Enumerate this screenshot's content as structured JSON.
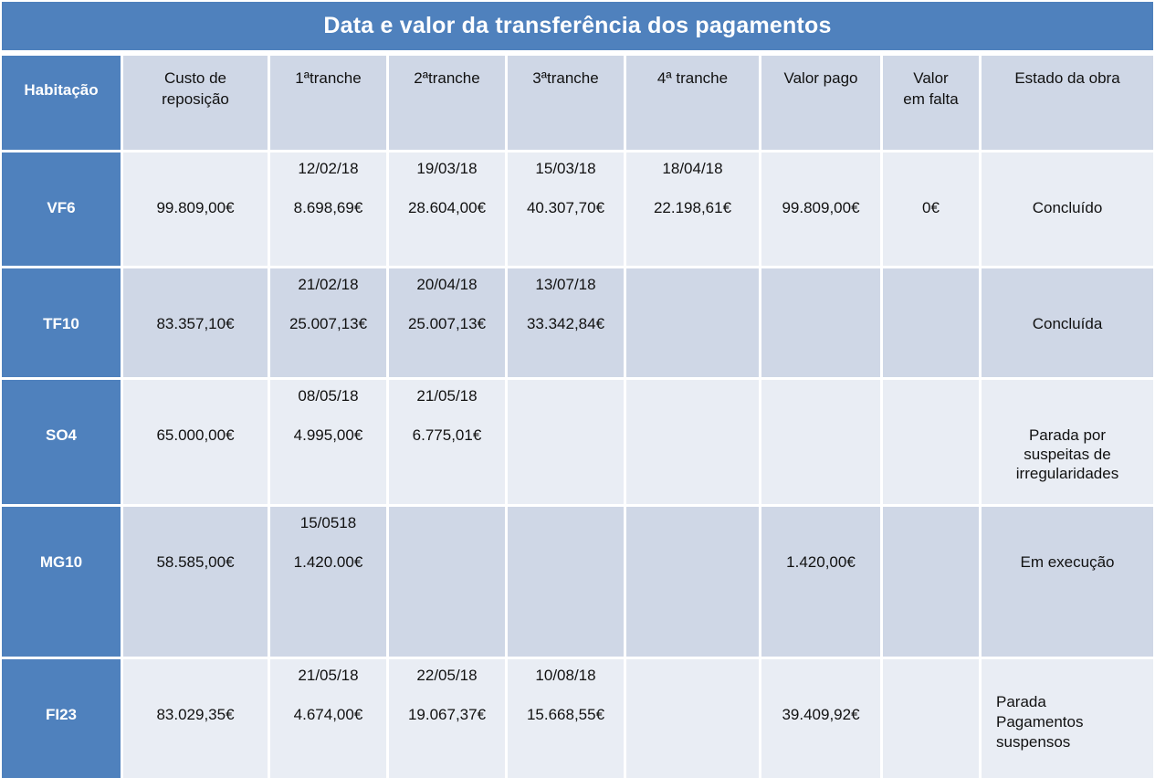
{
  "title": "Data e valor da transferência dos pagamentos",
  "colors": {
    "accent_blue": "#4f81bd",
    "band_dark": "#cfd7e6",
    "band_light": "#e9edf4",
    "title_text": "#ffffff",
    "body_text": "#111111"
  },
  "columns": [
    "Habitação",
    "Custo de\nreposição",
    "1ªtranche",
    "2ªtranche",
    "3ªtranche",
    "4ª tranche",
    "Valor pago",
    "Valor\nem falta",
    "Estado da obra"
  ],
  "rows": [
    {
      "id": "VF6",
      "custo": "99.809,00€",
      "t1": {
        "date": "12/02/18",
        "value": "8.698,69€"
      },
      "t2": {
        "date": "19/03/18",
        "value": "28.604,00€"
      },
      "t3": {
        "date": "15/03/18",
        "value": "40.307,70€"
      },
      "t4": {
        "date": "18/04/18",
        "value": "22.198,61€"
      },
      "valor_pago": "99.809,00€",
      "valor_em_falta": "0€",
      "estado": "Concluído"
    },
    {
      "id": "TF10",
      "custo": "83.357,10€",
      "t1": {
        "date": "21/02/18",
        "value": "25.007,13€"
      },
      "t2": {
        "date": "20/04/18",
        "value": "25.007,13€"
      },
      "t3": {
        "date": "13/07/18",
        "value": "33.342,84€"
      },
      "t4": {
        "date": "",
        "value": ""
      },
      "valor_pago": "",
      "valor_em_falta": "",
      "estado": "Concluída"
    },
    {
      "id": "SO4",
      "custo": "65.000,00€",
      "t1": {
        "date": "08/05/18",
        "value": "4.995,00€"
      },
      "t2": {
        "date": "21/05/18",
        "value": "6.775,01€"
      },
      "t3": {
        "date": "",
        "value": ""
      },
      "t4": {
        "date": "",
        "value": ""
      },
      "valor_pago": "",
      "valor_em_falta": "",
      "estado": "Parada por\nsuspeitas de\nirregularidades"
    },
    {
      "id": "MG10",
      "custo": "58.585,00€",
      "t1": {
        "date": "15/0518",
        "value": "1.420.00€"
      },
      "t2": {
        "date": "",
        "value": ""
      },
      "t3": {
        "date": "",
        "value": ""
      },
      "t4": {
        "date": "",
        "value": ""
      },
      "valor_pago": "1.420,00€",
      "valor_em_falta": "",
      "estado": "Em execução"
    },
    {
      "id": "FI23",
      "custo": "83.029,35€",
      "t1": {
        "date": "21/05/18",
        "value": "4.674,00€"
      },
      "t2": {
        "date": "22/05/18",
        "value": "19.067,37€"
      },
      "t3": {
        "date": "10/08/18",
        "value": "15.668,55€"
      },
      "t4": {
        "date": "",
        "value": ""
      },
      "valor_pago": "39.409,92€",
      "valor_em_falta": "",
      "estado": "Parada\nPagamentos\nsuspensos"
    }
  ]
}
